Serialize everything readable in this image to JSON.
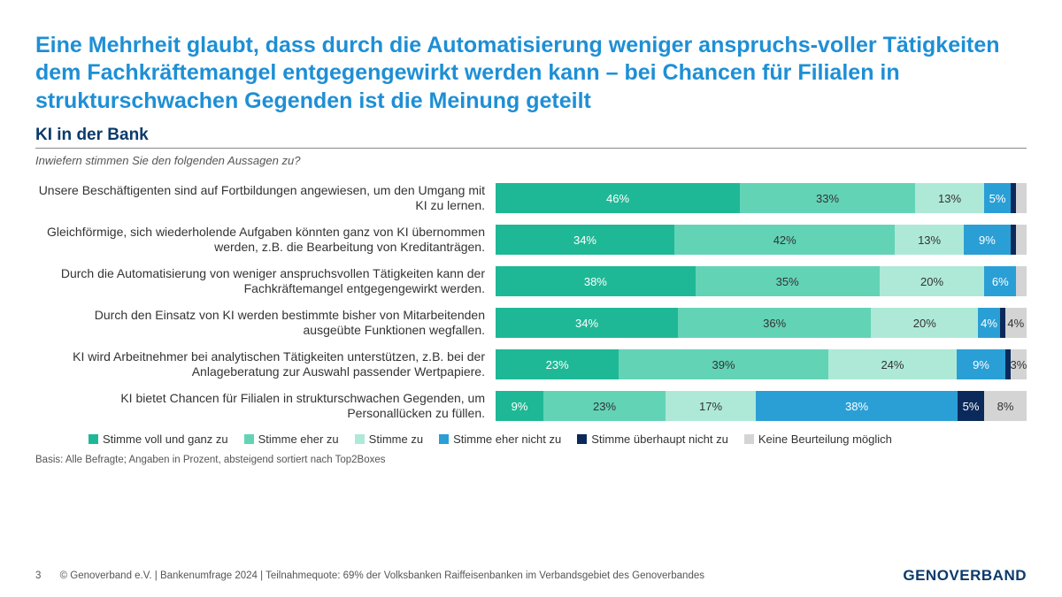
{
  "title": "Eine Mehrheit glaubt, dass durch die Automatisierung weniger anspruchs-voller Tätigkeiten dem Fachkräftemangel entgegengewirkt werden kann – bei Chancen für Filialen in strukturschwachen Gegenden ist die Meinung geteilt",
  "subtitle": "KI in der Bank",
  "question": "Inwiefern stimmen Sie den folgenden Aussagen zu?",
  "colors": {
    "c1": "#1fb896",
    "c2": "#63d3b6",
    "c3": "#aee9d8",
    "c4": "#2a9fd6",
    "c5": "#0b2a5b",
    "c6": "#d4d4d4"
  },
  "legend": [
    {
      "key": "c1",
      "label": "Stimme voll und ganz zu"
    },
    {
      "key": "c2",
      "label": "Stimme eher zu"
    },
    {
      "key": "c3",
      "label": "Stimme zu"
    },
    {
      "key": "c4",
      "label": "Stimme eher nicht zu"
    },
    {
      "key": "c5",
      "label": "Stimme überhaupt nicht zu"
    },
    {
      "key": "c6",
      "label": "Keine Beurteilung möglich"
    }
  ],
  "rows": [
    {
      "label": "Unsere Beschäftigenten sind auf Fortbildungen angewiesen, um den Umgang mit KI zu lernen.",
      "v": [
        46,
        33,
        13,
        5,
        1,
        2
      ]
    },
    {
      "label": "Gleichförmige, sich wiederholende Aufgaben könnten ganz von KI übernommen werden, z.B. die Bearbeitung von Kreditanträgen.",
      "v": [
        34,
        42,
        13,
        9,
        1,
        2
      ]
    },
    {
      "label": "Durch die Automatisierung von weniger anspruchsvollen Tätigkeiten kann der Fachkräftemangel entgegengewirkt werden.",
      "v": [
        38,
        35,
        20,
        6,
        0,
        2
      ]
    },
    {
      "label": "Durch den Einsatz von KI werden bestimmte bisher von Mitarbeitenden ausgeübte Funktionen wegfallen.",
      "v": [
        34,
        36,
        20,
        4,
        1,
        4
      ]
    },
    {
      "label": "KI wird Arbeitnehmer bei analytischen Tätigkeiten unterstützen, z.B. bei der Anlageberatung zur Auswahl passender Wertpapiere.",
      "v": [
        23,
        39,
        24,
        9,
        1,
        3
      ]
    },
    {
      "label": "KI bietet Chancen für Filialen in strukturschwachen Gegenden, um Personallücken zu füllen.",
      "v": [
        9,
        23,
        17,
        38,
        5,
        8
      ]
    }
  ],
  "basis": "Basis: Alle Befragte; Angaben in Prozent, absteigend sortiert nach Top2Boxes",
  "footer": {
    "page": "3",
    "text": "© Genoverband e.V. | Bankenumfrage 2024 | Teilnahmequote: 69% der Volksbanken Raiffeisenbanken im Verbandsgebiet des Genoverbandes",
    "brand": "GENOVERBAND"
  },
  "label_min_pct": 3
}
